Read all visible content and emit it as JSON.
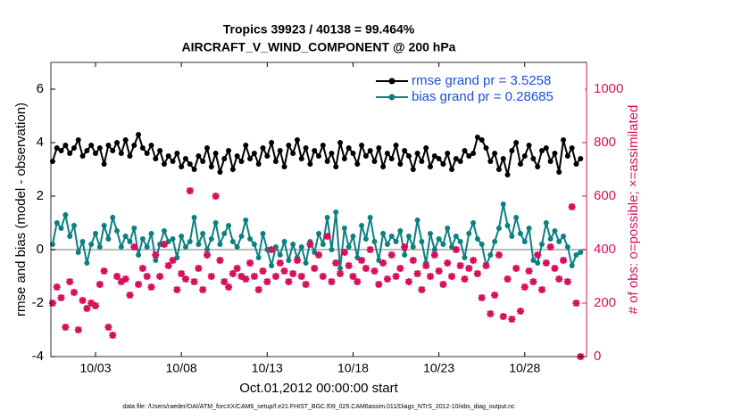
{
  "chart_data": {
    "type": "line",
    "title": "Tropics 39923 / 40138 = 99.464%",
    "subtitle": "AIRCRAFT_V_WIND_COMPONENT @ 200 hPa",
    "xlabel": "Oct.01,2012 00:00:00 start",
    "ylabel": "rmse and bias (model - observation)",
    "y2label": "# of obs: o=possible; ×=assimilated",
    "footnote": "data file: /Users/raeder/DAI/ATM_forcXX/CAM6_setup/f.e21.FHIST_BGC.f09_025.CAM6assim.011/Diags_NTrS_2012-10/obs_diag_output.nc",
    "legend": "northeast",
    "zero_line": true,
    "xlim": [
      0.4,
      31.6
    ],
    "xticks": [
      {
        "value": 3,
        "label": "10/03"
      },
      {
        "value": 8,
        "label": "10/08"
      },
      {
        "value": 13,
        "label": "10/13"
      },
      {
        "value": 18,
        "label": "10/18"
      },
      {
        "value": 23,
        "label": "10/23"
      },
      {
        "value": 28,
        "label": "10/28"
      }
    ],
    "ylim": [
      -4,
      7
    ],
    "yticks": [
      -4,
      -2,
      0,
      2,
      4,
      6
    ],
    "y2lim": [
      0,
      1100
    ],
    "y2ticks": [
      0,
      200,
      400,
      600,
      800,
      1000
    ],
    "x": [
      0.5,
      0.75,
      1,
      1.25,
      1.5,
      1.75,
      2,
      2.25,
      2.5,
      2.75,
      3,
      3.25,
      3.5,
      3.75,
      4,
      4.25,
      4.5,
      4.75,
      5,
      5.25,
      5.5,
      5.75,
      6,
      6.25,
      6.5,
      6.75,
      7,
      7.25,
      7.5,
      7.75,
      8,
      8.25,
      8.5,
      8.75,
      9,
      9.25,
      9.5,
      9.75,
      10,
      10.25,
      10.5,
      10.75,
      11,
      11.25,
      11.5,
      11.75,
      12,
      12.25,
      12.5,
      12.75,
      13,
      13.25,
      13.5,
      13.75,
      14,
      14.25,
      14.5,
      14.75,
      15,
      15.25,
      15.5,
      15.75,
      16,
      16.25,
      16.5,
      16.75,
      17,
      17.25,
      17.5,
      17.75,
      18,
      18.25,
      18.5,
      18.75,
      19,
      19.25,
      19.5,
      19.75,
      20,
      20.25,
      20.5,
      20.75,
      21,
      21.25,
      21.5,
      21.75,
      22,
      22.25,
      22.5,
      22.75,
      23,
      23.25,
      23.5,
      23.75,
      24,
      24.25,
      24.5,
      24.75,
      25,
      25.25,
      25.5,
      25.75,
      26,
      26.25,
      26.5,
      26.75,
      27,
      27.25,
      27.5,
      27.75,
      28,
      28.25,
      28.5,
      28.75,
      29,
      29.25,
      29.5,
      29.75,
      30,
      30.25,
      30.5,
      30.75,
      31,
      31.25
    ],
    "series": [
      {
        "name": "rmse grand pr = 3.5258",
        "color": "#000000",
        "marker": "circle",
        "values": [
          3.3,
          3.8,
          3.7,
          3.9,
          3.6,
          3.8,
          4.1,
          3.5,
          3.7,
          3.9,
          3.6,
          3.8,
          3.2,
          3.9,
          3.7,
          4.0,
          3.6,
          4.1,
          3.5,
          3.9,
          4.3,
          3.8,
          3.6,
          3.9,
          3.4,
          3.7,
          3.2,
          3.5,
          3.3,
          3.6,
          3.1,
          3.4,
          3.2,
          3.0,
          3.5,
          3.3,
          3.8,
          3.1,
          3.6,
          2.9,
          3.4,
          3.7,
          3.0,
          3.5,
          3.3,
          3.9,
          3.4,
          3.6,
          3.2,
          3.8,
          3.5,
          4.0,
          3.3,
          3.7,
          3.1,
          3.9,
          3.6,
          4.1,
          3.4,
          3.8,
          3.2,
          3.7,
          3.5,
          3.9,
          3.3,
          3.6,
          3.1,
          4.0,
          3.4,
          3.8,
          3.6,
          3.2,
          3.9,
          3.5,
          3.7,
          3.3,
          3.8,
          3.1,
          3.6,
          3.4,
          3.9,
          3.2,
          3.7,
          3.5,
          3.0,
          3.6,
          3.3,
          3.8,
          3.1,
          3.5,
          3.4,
          3.2,
          3.6,
          3.0,
          3.4,
          3.3,
          3.7,
          3.5,
          3.6,
          4.2,
          4.1,
          3.8,
          3.3,
          3.6,
          3.0,
          3.4,
          2.8,
          3.7,
          4.0,
          3.2,
          3.5,
          3.9,
          3.4,
          3.1,
          3.7,
          3.8,
          3.3,
          3.6,
          2.9,
          4.1,
          3.5,
          3.8,
          3.2,
          3.4
        ]
      },
      {
        "name": "bias grand pr = 0.28685",
        "color": "#0b8080",
        "marker": "circle",
        "values": [
          0.2,
          1.0,
          0.8,
          1.3,
          0.5,
          0.9,
          -0.1,
          0.3,
          -0.5,
          0.2,
          0.6,
          0.1,
          0.9,
          0.4,
          1.2,
          0.7,
          0.1,
          0.5,
          0.3,
          0.8,
          -0.2,
          0.4,
          0.1,
          0.6,
          -0.4,
          0.2,
          0.7,
          0.3,
          0.4,
          -0.3,
          0.5,
          0.1,
          0.3,
          1.2,
          0.2,
          0.6,
          0.0,
          0.4,
          1.0,
          0.2,
          0.6,
          0.9,
          0.3,
          0.1,
          0.5,
          1.1,
          0.4,
          0.2,
          -0.3,
          0.6,
          0.0,
          -0.6,
          0.1,
          -0.2,
          0.3,
          -0.4,
          0.2,
          -0.3,
          0.1,
          -0.5,
          0.3,
          -0.1,
          0.6,
          0.2,
          1.2,
          0.0,
          1.4,
          -0.7,
          0.8,
          0.1,
          0.5,
          -0.3,
          0.9,
          0.4,
          1.2,
          0.3,
          -0.4,
          0.6,
          0.2,
          0.5,
          0.3,
          0.7,
          -0.2,
          0.5,
          0.1,
          1.1,
          0.3,
          -0.5,
          0.6,
          0.0,
          0.4,
          0.2,
          0.8,
          0.1,
          0.5,
          0.3,
          -0.3,
          0.6,
          1.0,
          0.4,
          0.2,
          -0.6,
          -0.2,
          0.3,
          0.8,
          1.7,
          0.9,
          0.5,
          1.2,
          0.6,
          0.3,
          0.8,
          -0.4,
          -0.5,
          0.2,
          1.0,
          0.4,
          0.7,
          0.3,
          0.5,
          0.1,
          -0.6,
          -0.2,
          -0.1
        ]
      },
      {
        "color": "#d6115b",
        "marker": "star",
        "axis": "y2",
        "values": [
          200,
          260,
          220,
          110,
          280,
          240,
          100,
          210,
          180,
          200,
          190,
          270,
          320,
          110,
          80,
          300,
          280,
          290,
          230,
          410,
          270,
          330,
          300,
          260,
          380,
          300,
          420,
          340,
          360,
          250,
          310,
          290,
          620,
          280,
          330,
          250,
          380,
          300,
          600,
          360,
          280,
          260,
          310,
          330,
          300,
          290,
          350,
          300,
          250,
          320,
          280,
          400,
          300,
          350,
          320,
          280,
          310,
          360,
          300,
          270,
          420,
          330,
          380,
          300,
          450,
          280,
          350,
          310,
          390,
          340,
          300,
          280,
          360,
          330,
          400,
          320,
          270,
          350,
          290,
          380,
          300,
          330,
          410,
          280,
          360,
          310,
          250,
          340,
          300,
          380,
          320,
          270,
          350,
          300,
          400,
          340,
          290,
          330,
          360,
          310,
          220,
          340,
          160,
          230,
          380,
          150,
          290,
          140,
          330,
          170,
          260,
          320,
          280,
          380,
          250,
          350,
          410,
          330,
          290,
          360,
          280,
          560,
          200,
          0
        ]
      }
    ]
  }
}
